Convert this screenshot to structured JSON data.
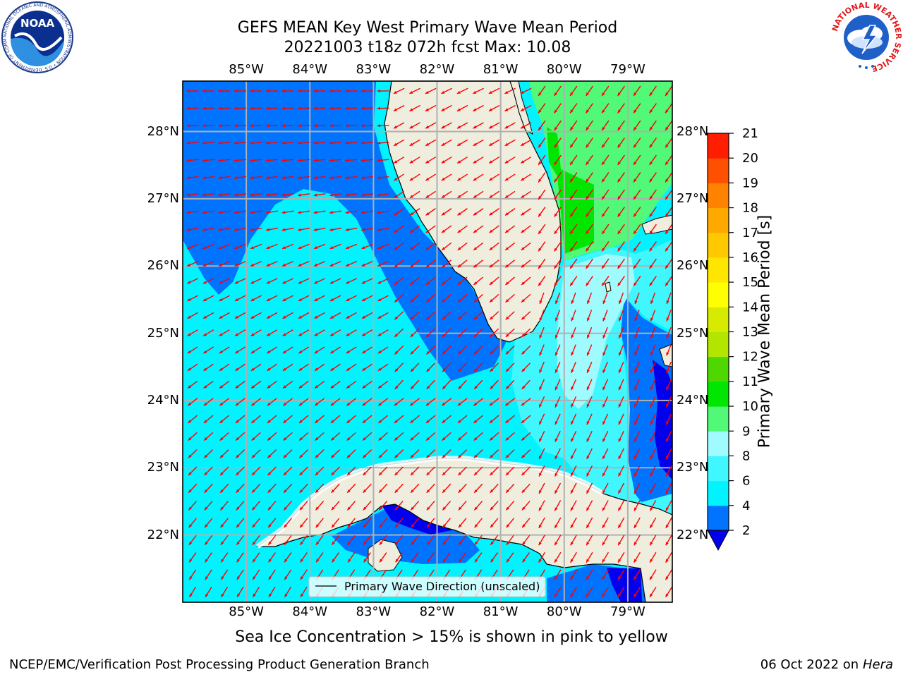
{
  "title_line1": "GEFS MEAN Key West Primary Wave Mean Period",
  "title_line2": "20221003 t18z 072h fcst   Max: 10.08",
  "logos": {
    "noaa_text": "NOAA",
    "noaa_ring": "NATIONAL OCEANIC AND ATMOSPHERIC ADMINISTRATION • U.S. DEPARTMENT OF COMMERCE •",
    "nws_ring": "NATIONAL WEATHER SERVICE"
  },
  "map": {
    "lon_range": [
      -86,
      -78.3
    ],
    "lat_range": [
      21.0,
      28.75
    ],
    "lon_ticks": [
      "85°W",
      "84°W",
      "83°W",
      "82°W",
      "81°W",
      "80°W",
      "79°W"
    ],
    "lat_ticks": [
      "28°N",
      "27°N",
      "26°N",
      "25°N",
      "24°N",
      "23°N",
      "22°N"
    ],
    "legend_label": "Primary Wave Direction (unscaled)",
    "arrow_color": "#ff0000",
    "land_color": "#efedde",
    "grid": true
  },
  "colorbar": {
    "label": "Primary Wave Mean Period [s]",
    "ticks": [
      "2",
      "4",
      "6",
      "8",
      "9",
      "10",
      "11",
      "12",
      "13",
      "14",
      "15",
      "16",
      "17",
      "18",
      "19",
      "20",
      "21"
    ],
    "colors": [
      "#0073ff",
      "#00f3ff",
      "#40f7ff",
      "#a0fbff",
      "#52f878",
      "#00e600",
      "#4ed700",
      "#b2e600",
      "#d6eb00",
      "#ffff00",
      "#ffe600",
      "#ffc800",
      "#ffa800",
      "#ff8200",
      "#ff5000",
      "#ff1e00"
    ],
    "under_color": "#0000ee"
  },
  "note": "Sea Ice Concentration > 15% is shown in pink to yellow",
  "footer_left": "NCEP/EMC/Verification Post Processing Product Generation Branch",
  "footer_right_date": "06 Oct 2022 on",
  "footer_right_host": "Hera"
}
